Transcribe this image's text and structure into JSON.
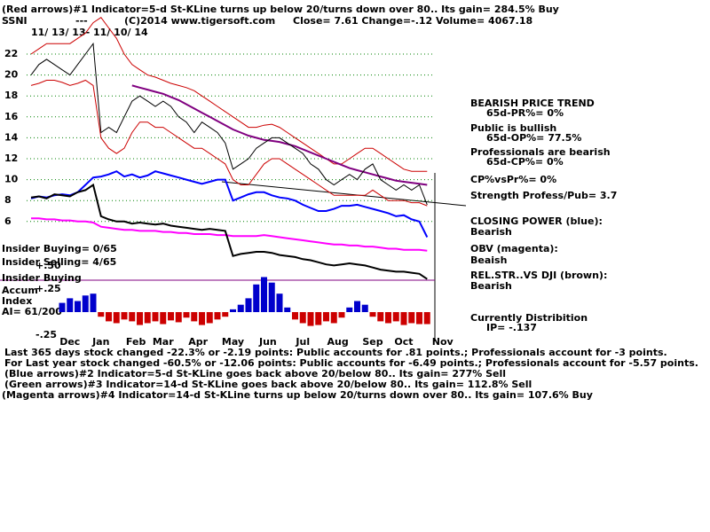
{
  "annotations": [
    "(Red arrows)#1 Indicator=5-d St-KLine turns up below 20/turns down over 80.. Its gain= 284.5% Buy",
    "SSNI",
    "---",
    "(C)2014 www.tigersoft.com",
    "Close=  7.61  Change=-.12 Volume= 4067.18",
    "11/ 13/ 13-  11/ 10/ 14",
    "BEARISH PRICE TREND",
    "65d-PR%= 0%",
    "Public is bullish",
    "65d-OP%= 77.5%",
    "Professionals are bearish",
    "65d-CP%= 0%",
    "CP%vsPr%=  0%",
    "Strength Profess/Pub= 3.7",
    "CLOSING POWER (blue):",
    "Bearish",
    "OBV (magenta):",
    "Beaish",
    "REL.STR..VS DJI (brown):",
    "Bearish",
    "Currently Distribition",
    "IP= -.137",
    "Insider Buying= 0/65",
    "Insider Selling= 4/65",
    "Insider Buying",
    "Accum",
    "Index",
    "AI= 61/200",
    "Last 365 days stock changed -22.3% or -2.19 points:  Public accounts for  .81 points.;  Professionals account for -3 points.",
    "For Last year stock changed -60.5% or -12.06 points:  Public accounts for -6.49 points.;  Professionals account for -5.57 points.",
    "(Blue arrows)#2 Indicator=5-d St-KLine goes back above 20/below 80.. Its gain= 277% Sell",
    "(Green arrows)#3 Indicator=14-d St-KLine goes back above 20/below 80.. Its gain= 112.8% Sell",
    "(Magenta arrows)#4 Indicator=14-d St-KLine turns up below 20/turns down over 80.. Its gain= 107.6% Buy"
  ],
  "chart_data": [
    {
      "type": "line",
      "x": [
        0,
        1,
        2,
        3,
        4,
        5,
        6,
        7,
        8,
        9,
        10,
        11,
        12,
        13,
        14,
        15,
        16,
        17,
        18,
        19,
        20,
        21,
        22,
        23,
        24,
        25,
        26,
        27,
        28,
        29,
        30,
        31,
        32,
        33,
        34,
        35,
        36,
        37,
        38,
        39,
        40,
        41,
        42,
        43,
        44,
        45,
        46,
        47,
        48,
        49,
        50,
        51
      ],
      "xlim": [
        0,
        54
      ],
      "ylim": [
        0,
        25
      ],
      "yticks": [
        6,
        8,
        10,
        12,
        14,
        16,
        18,
        20,
        22
      ],
      "grid": true,
      "grid_color": "#008000",
      "series": [
        {
          "color": "#cc0000",
          "values": [
            22,
            22.5,
            23,
            23,
            23,
            23,
            23.5,
            24,
            25,
            25.5,
            24.5,
            23.5,
            22,
            21,
            20.5,
            20,
            19.8,
            19.5,
            19.2,
            19,
            18.8,
            18.5,
            18,
            17.5,
            17,
            16.5,
            16,
            15.5,
            15,
            15,
            15.2,
            15.3,
            15,
            14.5,
            14,
            13.5,
            13,
            12.5,
            12,
            11.5,
            11.5,
            12,
            12.5,
            13,
            13,
            12.5,
            12,
            11.5,
            11,
            10.8,
            10.8,
            10.8
          ]
        },
        {
          "color": "#cc0000",
          "values": [
            19,
            19.2,
            19.5,
            19.5,
            19.3,
            19,
            19.2,
            19.5,
            19,
            14,
            13,
            12.5,
            13,
            14.5,
            15.5,
            15.5,
            15,
            15,
            14.5,
            14,
            13.5,
            13,
            13,
            12.5,
            12,
            11.5,
            10,
            9.5,
            9.5,
            10.5,
            11.5,
            12,
            12,
            11.5,
            11,
            10.5,
            10,
            9.5,
            9,
            8.5,
            8.5,
            8.5,
            8.5,
            8.5,
            9,
            8.5,
            8,
            8,
            8,
            7.8,
            7.8,
            7.5
          ]
        },
        {
          "color": "#800080",
          "values": [
            null,
            null,
            null,
            null,
            null,
            null,
            null,
            null,
            null,
            null,
            null,
            null,
            null,
            19,
            18.8,
            18.6,
            18.4,
            18.2,
            17.9,
            17.6,
            17.2,
            16.8,
            16.4,
            16,
            15.6,
            15.2,
            14.8,
            14.5,
            14.2,
            14,
            13.8,
            13.7,
            13.6,
            13.4,
            13.2,
            12.9,
            12.6,
            12.3,
            12,
            11.7,
            11.4,
            11.1,
            10.9,
            10.7,
            10.5,
            10.3,
            10.1,
            9.9,
            9.8,
            9.7,
            9.6,
            9.5
          ]
        },
        {
          "color": "#000000",
          "values": [
            20,
            21,
            21.5,
            21,
            20.5,
            20,
            21,
            22,
            23,
            14.5,
            15,
            14.5,
            16,
            17.5,
            18,
            17.5,
            17,
            17.5,
            17,
            16,
            15.5,
            14.5,
            15.5,
            15,
            14.5,
            13.5,
            11,
            11.5,
            12,
            13,
            13.5,
            14,
            14,
            13.5,
            13,
            12.5,
            11.5,
            11,
            10,
            9.5,
            10,
            10.5,
            10,
            11,
            11.5,
            10,
            9.5,
            9,
            9.5,
            9,
            9.5,
            7.6
          ]
        },
        {
          "color": "#0000ff",
          "values": [
            8.2,
            8.4,
            8.3,
            8.5,
            8.6,
            8.5,
            8.8,
            9.5,
            10.2,
            10.3,
            10.5,
            10.8,
            10.3,
            10.5,
            10.2,
            10.4,
            10.8,
            10.6,
            10.4,
            10.2,
            10,
            9.8,
            9.6,
            9.8,
            10,
            10,
            8,
            8.3,
            8.6,
            8.8,
            8.8,
            8.5,
            8.3,
            8.2,
            8,
            7.6,
            7.3,
            7,
            7,
            7.2,
            7.5,
            7.5,
            7.6,
            7.4,
            7.2,
            7,
            6.8,
            6.5,
            6.6,
            6.2,
            6,
            4.5
          ]
        },
        {
          "color": "#ff00ff",
          "values": [
            6.3,
            6.3,
            6.2,
            6.2,
            6.1,
            6.1,
            6,
            6,
            5.9,
            5.5,
            5.4,
            5.3,
            5.2,
            5.2,
            5.1,
            5.1,
            5.1,
            5,
            5,
            4.9,
            4.9,
            4.8,
            4.8,
            4.8,
            4.7,
            4.7,
            4.6,
            4.6,
            4.6,
            4.6,
            4.7,
            4.6,
            4.5,
            4.4,
            4.3,
            4.2,
            4.1,
            4,
            3.9,
            3.8,
            3.8,
            3.7,
            3.7,
            3.6,
            3.6,
            3.5,
            3.4,
            3.4,
            3.3,
            3.3,
            3.3,
            3.2
          ]
        },
        {
          "color": "#000000",
          "values": [
            8.3,
            8.4,
            8.2,
            8.6,
            8.5,
            8.4,
            8.8,
            9,
            9.5,
            6.5,
            6.2,
            6,
            6,
            5.8,
            5.9,
            5.8,
            5.7,
            5.8,
            5.6,
            5.5,
            5.4,
            5.3,
            5.2,
            5.3,
            5.2,
            5.1,
            2.7,
            2.9,
            3,
            3.1,
            3.1,
            3,
            2.8,
            2.7,
            2.6,
            2.4,
            2.3,
            2.1,
            1.9,
            1.8,
            1.9,
            2,
            1.9,
            1.8,
            1.6,
            1.4,
            1.3,
            1.2,
            1.2,
            1.1,
            1,
            0.5
          ]
        }
      ]
    },
    {
      "type": "bar",
      "x": [
        0,
        1,
        2,
        3,
        4,
        5,
        6,
        7,
        8,
        9,
        10,
        11,
        12,
        13,
        14,
        15,
        16,
        17,
        18,
        19,
        20,
        21,
        22,
        23,
        24,
        25,
        26,
        27,
        28,
        29,
        30,
        31,
        32,
        33,
        34,
        35,
        36,
        37,
        38,
        39,
        40,
        41,
        42,
        43,
        44,
        45,
        46,
        47,
        48,
        49,
        50,
        51
      ],
      "xlim": [
        0,
        54
      ],
      "ylim": [
        -0.3,
        0.5
      ],
      "xticks": [
        {
          "value": 5,
          "label": "Dec"
        },
        {
          "value": 9,
          "label": "Jan"
        },
        {
          "value": 13.5,
          "label": "Feb"
        },
        {
          "value": 17,
          "label": "Mar"
        },
        {
          "value": 21.5,
          "label": "Apr"
        },
        {
          "value": 26,
          "label": "May"
        },
        {
          "value": 30.5,
          "label": "Jun"
        },
        {
          "value": 35,
          "label": "Jul"
        },
        {
          "value": 39.5,
          "label": "Aug"
        },
        {
          "value": 44,
          "label": "Sep"
        },
        {
          "value": 48,
          "label": "Oct"
        },
        {
          "value": 53,
          "label": "Nov"
        }
      ],
      "yticks": [
        {
          "value": 0.5,
          "label": "+.50"
        },
        {
          "value": 0.25,
          "label": "+.25"
        },
        {
          "value": -0.25,
          "label": "-.25"
        }
      ],
      "color_positive": "#0000cc",
      "color_negative": "#cc0000",
      "values": [
        0,
        0,
        0,
        0,
        0.1,
        0.15,
        0.12,
        0.18,
        0.2,
        -0.05,
        -0.1,
        -0.12,
        -0.08,
        -0.1,
        -0.14,
        -0.12,
        -0.1,
        -0.13,
        -0.09,
        -0.11,
        -0.06,
        -0.1,
        -0.14,
        -0.12,
        -0.08,
        -0.05,
        0.03,
        0.08,
        0.15,
        0.3,
        0.38,
        0.32,
        0.2,
        0.05,
        -0.08,
        -0.12,
        -0.15,
        -0.14,
        -0.1,
        -0.12,
        -0.06,
        0.05,
        0.12,
        0.08,
        -0.05,
        -0.1,
        -0.12,
        -0.1,
        -0.14,
        -0.12,
        -0.13,
        -0.13
      ]
    }
  ]
}
